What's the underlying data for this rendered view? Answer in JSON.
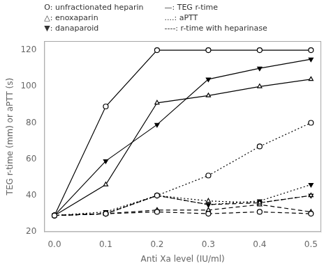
{
  "chart_data": {
    "type": "line",
    "x_label": "Anti Xa level (IU/ml)",
    "y_label": "TEG r-time (mm) or aPTT (s)",
    "annotations": [
      "O: unfractionated heparin",
      "△: enoxaparin",
      "▼: danaparoid",
      "—: TEG r-time",
      "....: aPTT",
      "----: r-time with heparinase"
    ],
    "x": [
      0.0,
      0.1,
      0.2,
      0.3,
      0.4,
      0.5
    ],
    "color": "black",
    "series": [
      {
        "values": [
          29,
          89,
          120,
          120,
          120,
          120
        ],
        "marker": "open-circle",
        "line_style": "solid"
      },
      {
        "values": [
          29,
          46,
          91,
          95,
          100,
          104
        ],
        "marker": "open-triangle-up",
        "line_style": "solid"
      },
      {
        "values": [
          29,
          59,
          79,
          104,
          110,
          115
        ],
        "marker": "filled-triangle-down",
        "line_style": "solid"
      },
      {
        "values": [
          29,
          30,
          40,
          51,
          67,
          80
        ],
        "marker": "open-circle",
        "line_style": "dotted"
      },
      {
        "values": [
          29,
          30,
          40,
          37,
          36,
          40
        ],
        "marker": "open-triangle-up",
        "line_style": "dotted"
      },
      {
        "values": [
          29,
          31,
          40,
          35,
          37,
          46
        ],
        "marker": "filled-triangle-down",
        "line_style": "dotted"
      },
      {
        "values": [
          29,
          30,
          31,
          30,
          31,
          30
        ],
        "marker": "open-circle",
        "line_style": "dashed"
      },
      {
        "values": [
          29,
          30,
          32,
          32,
          35,
          31
        ],
        "marker": "open-triangle-up",
        "line_style": "dashed"
      },
      {
        "values": [
          29,
          30,
          40,
          35,
          36,
          40
        ],
        "marker": "filled-triangle-down",
        "line_style": "dashed"
      }
    ],
    "xlim": [
      -0.02,
      0.52
    ],
    "xticks": [
      {
        "value": 0.0,
        "label": "0.0"
      },
      0.1,
      0.2,
      0.3,
      0.4,
      0.5
    ],
    "ylim": [
      20,
      125
    ],
    "yticks": [
      20,
      40,
      60,
      80,
      100,
      120
    ],
    "grid": false
  }
}
